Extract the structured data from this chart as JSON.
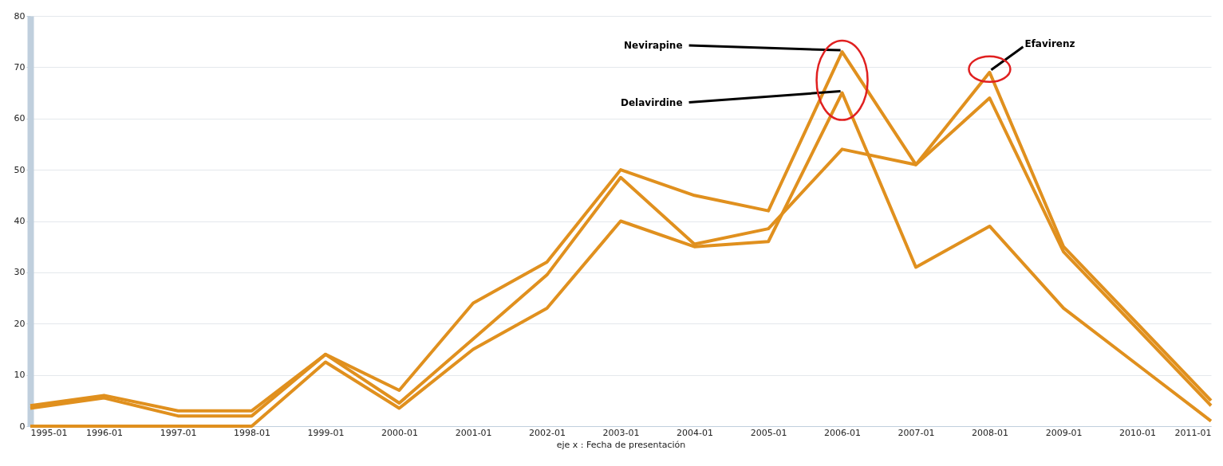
{
  "chart_data": {
    "type": "line",
    "xlabel": "eje x : Fecha de presentación",
    "x": [
      "1995-01",
      "1996-01",
      "1997-01",
      "1998-01",
      "1999-01",
      "2000-01",
      "2001-01",
      "2002-01",
      "2003-01",
      "2004-01",
      "2005-01",
      "2006-01",
      "2007-01",
      "2008-01",
      "2009-01",
      "2010-01",
      "2011-01"
    ],
    "series": [
      {
        "color": "#e0901e",
        "values": [
          4,
          6,
          3,
          3,
          14,
          7,
          24,
          32,
          50,
          45,
          42,
          73,
          51,
          64,
          34,
          19,
          4
        ]
      },
      {
        "color": "#e0901e",
        "values": [
          0,
          0,
          0,
          0,
          12.5,
          3.5,
          15,
          23,
          40,
          35,
          36,
          65,
          31,
          39,
          23,
          12,
          1
        ]
      },
      {
        "color": "#e0901e",
        "values": [
          3.5,
          5.5,
          2,
          2,
          14,
          4.5,
          17,
          29.5,
          48.5,
          35.5,
          38.5,
          54,
          51,
          69,
          35,
          20,
          5
        ]
      }
    ],
    "annotations": [
      {
        "text": "Nevirapine",
        "x": "2006-01",
        "y": 73
      },
      {
        "text": "Delavirdine",
        "x": "2006-01",
        "y": 65
      },
      {
        "text": "Efavirenz",
        "x": "2008-01",
        "y": 69
      }
    ],
    "xlim": [
      "1995-01",
      "2011-01"
    ],
    "xticks": [
      "1995-01",
      "1996-01",
      "1997-01",
      "1998-01",
      "1999-01",
      "2000-01",
      "2001-01",
      "2002-01",
      "2003-01",
      "2004-01",
      "2005-01",
      "2006-01",
      "2007-01",
      "2008-01",
      "2009-01",
      "2010-01",
      "2011-01"
    ],
    "ylim": [
      0,
      80
    ],
    "yticks": [
      0,
      10,
      20,
      30,
      40,
      50,
      60,
      70,
      80
    ],
    "grid": "y",
    "marker": "none",
    "line_style": "solid"
  }
}
